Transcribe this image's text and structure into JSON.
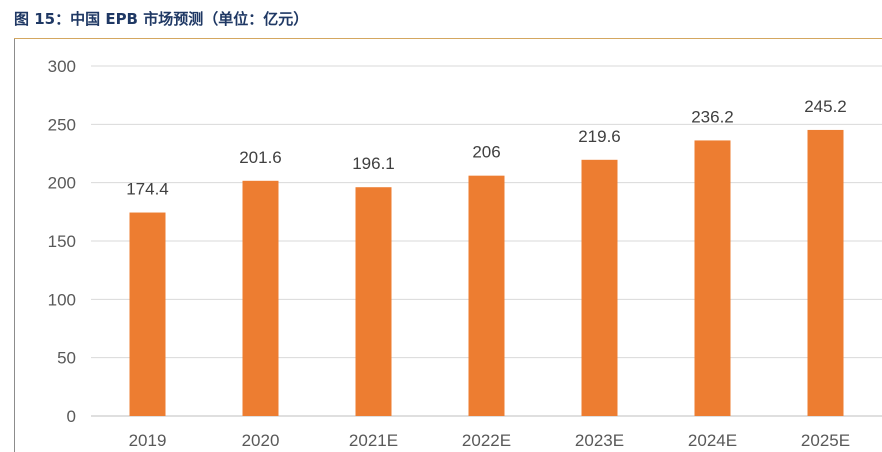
{
  "title": "图 15：中国 EPB 市场预测（单位：亿元）",
  "colors": {
    "bar": "#ed7d31",
    "grid": "#d9d9d9",
    "axis": "#bfbfbf",
    "title": "#1f3864",
    "rule": "#d4a760"
  },
  "chart_data": {
    "type": "bar",
    "title": "图 15：中国 EPB 市场预测（单位：亿元）",
    "categories": [
      "2019",
      "2020",
      "2021E",
      "2022E",
      "2023E",
      "2024E",
      "2025E"
    ],
    "values": [
      174.4,
      201.6,
      196.1,
      206,
      219.6,
      236.2,
      245.2
    ],
    "data_labels": [
      "174.4",
      "201.6",
      "196.1",
      "206",
      "219.6",
      "236.2",
      "245.2"
    ],
    "ylim": [
      0,
      300
    ],
    "yticks": [
      0,
      50,
      100,
      150,
      200,
      250,
      300
    ],
    "ytick_labels": [
      "0",
      "50",
      "100",
      "150",
      "200",
      "250",
      "300"
    ],
    "grid": true,
    "legend": "none"
  }
}
